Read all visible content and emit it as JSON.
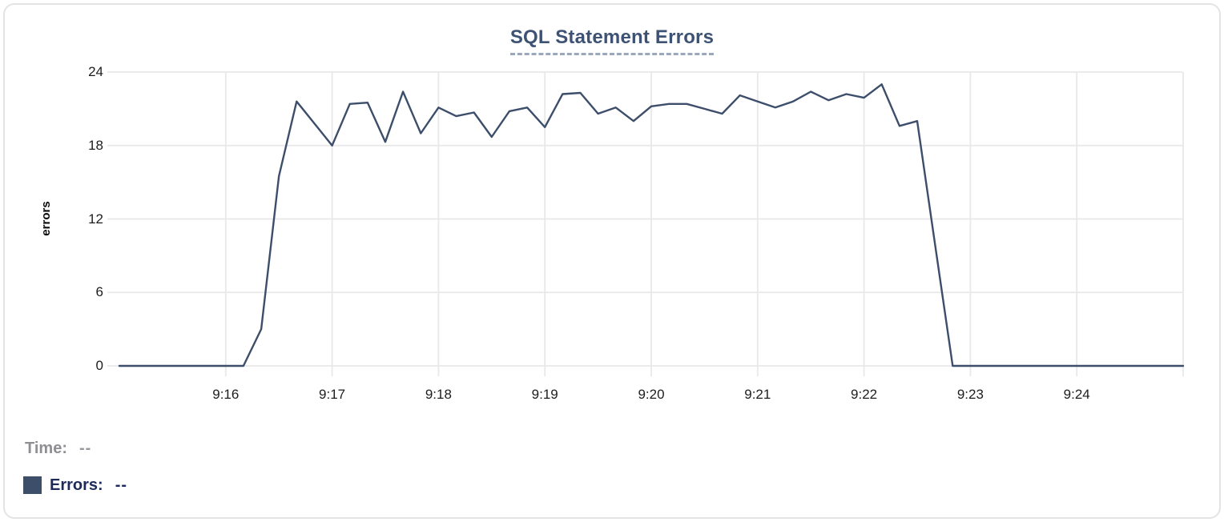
{
  "chart_data": {
    "type": "line",
    "title": "SQL Statement Errors",
    "xlabel": "",
    "ylabel": "errors",
    "ylim": [
      0,
      24
    ],
    "yticks": [
      0,
      6,
      12,
      18,
      24
    ],
    "grid": true,
    "legend_position": "bottom-left",
    "x_tick_labels": [
      {
        "time": "9:16:00",
        "label": "9:16"
      },
      {
        "time": "9:17:00",
        "label": "9:17"
      },
      {
        "time": "9:18:00",
        "label": "9:18"
      },
      {
        "time": "9:19:00",
        "label": "9:19"
      },
      {
        "time": "9:20:00",
        "label": "9:20"
      },
      {
        "time": "9:21:00",
        "label": "9:21"
      },
      {
        "time": "9:22:00",
        "label": "9:22"
      },
      {
        "time": "9:23:00",
        "label": "9:23"
      },
      {
        "time": "9:24:00",
        "label": "9:24"
      }
    ],
    "x_gridline_times": [
      "9:16:00",
      "9:17:00",
      "9:18:00",
      "9:19:00",
      "9:20:00",
      "9:21:00",
      "9:22:00",
      "9:23:00",
      "9:24:00",
      "9:25:00"
    ],
    "series": [
      {
        "name": "Errors",
        "color": "#3d4e6b",
        "interval_seconds": 10,
        "times": [
          "9:15:00",
          "9:15:10",
          "9:15:20",
          "9:15:30",
          "9:15:40",
          "9:15:50",
          "9:16:00",
          "9:16:10",
          "9:16:20",
          "9:16:30",
          "9:16:40",
          "9:16:50",
          "9:17:00",
          "9:17:10",
          "9:17:20",
          "9:17:30",
          "9:17:40",
          "9:17:50",
          "9:18:00",
          "9:18:10",
          "9:18:20",
          "9:18:30",
          "9:18:40",
          "9:18:50",
          "9:19:00",
          "9:19:10",
          "9:19:20",
          "9:19:30",
          "9:19:40",
          "9:19:50",
          "9:20:00",
          "9:20:10",
          "9:20:20",
          "9:20:30",
          "9:20:40",
          "9:20:50",
          "9:21:00",
          "9:21:10",
          "9:21:20",
          "9:21:30",
          "9:21:40",
          "9:21:50",
          "9:22:00",
          "9:22:10",
          "9:22:20",
          "9:22:30",
          "9:22:40",
          "9:22:50",
          "9:23:00",
          "9:23:10",
          "9:23:20",
          "9:23:30",
          "9:23:40",
          "9:23:50",
          "9:24:00",
          "9:24:10",
          "9:24:20",
          "9:24:30",
          "9:24:40",
          "9:24:50",
          "9:25:00"
        ],
        "values": [
          0,
          0,
          0,
          0,
          0,
          0,
          0,
          0,
          3,
          15.5,
          21.6,
          19.8,
          18,
          21.4,
          21.5,
          18.3,
          22.4,
          19,
          21.1,
          20.4,
          20.7,
          18.7,
          20.8,
          21.1,
          19.5,
          22.2,
          22.3,
          20.6,
          21.1,
          20,
          21.2,
          21.4,
          21.4,
          21,
          20.6,
          22.1,
          21.6,
          21.1,
          21.6,
          22.4,
          21.7,
          22.2,
          21.9,
          23,
          19.6,
          20,
          10,
          0,
          0,
          0,
          0,
          0,
          0,
          0,
          0,
          0,
          0,
          0,
          0,
          0,
          0
        ]
      }
    ]
  },
  "readout": {
    "time_label": "Time:",
    "time_value": "--",
    "errors_label": "Errors:",
    "errors_value": "--",
    "swatch_color": "#3d4e6b"
  },
  "colors": {
    "line": "#3d4e6b",
    "title_text": "#3e5274",
    "title_underline": "#9aa7bd",
    "gridline": "#e8e8ea",
    "tick_label": "#1d1d1f",
    "time_readout": "#8e8e93",
    "errors_readout": "#1e2b5a",
    "card_border": "#e4e4e6"
  }
}
